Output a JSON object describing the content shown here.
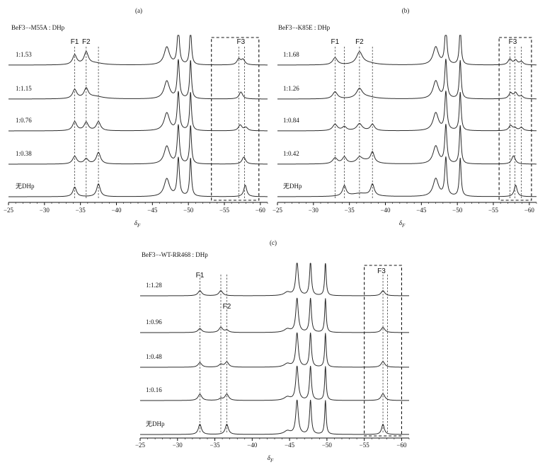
{
  "chart_data": [
    {
      "panel": "(a)",
      "type": "line",
      "title": "BeF3−-M55A : DHp",
      "xlabel": "δF",
      "x_ticks": [
        -25,
        -30,
        -35,
        -40,
        -45,
        -50,
        -55,
        -60
      ],
      "xlim": [
        -25,
        -61
      ],
      "peak_labels": [
        {
          "text": "F1",
          "ppm": -34.2
        },
        {
          "text": "F2",
          "ppm": -35.8
        },
        {
          "text": "F3",
          "ppm": -57.3
        }
      ],
      "dashed_lines_ppm": [
        -34.2,
        -35.8,
        -37.5,
        -57.0,
        -57.8
      ],
      "dashed_box_ppm": [
        -53.2,
        -59.8
      ],
      "series": [
        {
          "name": "1:1.53",
          "peaks": [
            [
              -34.2,
              0.75,
              0.35
            ],
            [
              -35.8,
              0.95,
              0.35
            ],
            [
              -37.0,
              0.15,
              1.4
            ],
            [
              -47.0,
              1.4,
              0.45
            ],
            [
              -48.6,
              3.0,
              0.18
            ],
            [
              -50.3,
              3.0,
              0.15
            ],
            [
              -57.0,
              0.45,
              0.3
            ],
            [
              -57.6,
              0.4,
              0.3
            ]
          ]
        },
        {
          "name": "1:1.15",
          "peaks": [
            [
              -34.2,
              0.7,
              0.35
            ],
            [
              -35.8,
              0.75,
              0.35
            ],
            [
              -37.0,
              0.2,
              1.4
            ],
            [
              -47.0,
              1.4,
              0.45
            ],
            [
              -48.6,
              3.0,
              0.18
            ],
            [
              -50.3,
              3.0,
              0.15
            ],
            [
              -57.3,
              0.55,
              0.3
            ]
          ]
        },
        {
          "name": "1:0.76",
          "peaks": [
            [
              -34.2,
              0.7,
              0.35
            ],
            [
              -35.8,
              0.65,
              0.35
            ],
            [
              -37.5,
              0.7,
              0.35
            ],
            [
              -47.0,
              1.4,
              0.45
            ],
            [
              -48.6,
              3.0,
              0.18
            ],
            [
              -50.3,
              3.0,
              0.15
            ],
            [
              -57.2,
              0.45,
              0.3
            ],
            [
              -58.0,
              0.25,
              0.3
            ]
          ]
        },
        {
          "name": "1:0.38",
          "peaks": [
            [
              -34.2,
              0.6,
              0.35
            ],
            [
              -35.8,
              0.4,
              0.35
            ],
            [
              -37.5,
              0.9,
              0.35
            ],
            [
              -47.0,
              1.4,
              0.45
            ],
            [
              -48.6,
              3.0,
              0.18
            ],
            [
              -50.3,
              3.0,
              0.15
            ],
            [
              -57.7,
              0.55,
              0.3
            ]
          ]
        },
        {
          "name": "无DHp",
          "peaks": [
            [
              -34.2,
              0.75,
              0.3
            ],
            [
              -37.5,
              1.0,
              0.3
            ],
            [
              -47.0,
              1.4,
              0.45
            ],
            [
              -48.6,
              3.0,
              0.18
            ],
            [
              -50.3,
              3.0,
              0.15
            ],
            [
              -57.9,
              0.9,
              0.25
            ]
          ]
        }
      ]
    },
    {
      "panel": "(b)",
      "type": "line",
      "title": "BeF3−-K85E : DHp",
      "xlabel": "δF",
      "x_ticks": [
        -25,
        -30,
        -35,
        -40,
        -45,
        -50,
        -55,
        -60
      ],
      "xlim": [
        -25,
        -61
      ],
      "peak_labels": [
        {
          "text": "F1",
          "ppm": -33.0
        },
        {
          "text": "F2",
          "ppm": -36.4
        },
        {
          "text": "F3",
          "ppm": -57.7
        }
      ],
      "dashed_lines_ppm": [
        -33.0,
        -34.3,
        -36.4,
        -38.2,
        -57.3,
        -58.0,
        -58.9
      ],
      "dashed_box_ppm": [
        -55.8,
        -60.3
      ],
      "series": [
        {
          "name": "1:1.68",
          "peaks": [
            [
              -33.0,
              0.55,
              0.4
            ],
            [
              -36.4,
              0.95,
              0.5
            ],
            [
              -37.5,
              0.15,
              1.4
            ],
            [
              -47.0,
              1.4,
              0.45
            ],
            [
              -48.4,
              3.0,
              0.18
            ],
            [
              -50.4,
              3.0,
              0.15
            ],
            [
              -57.3,
              0.45,
              0.3
            ],
            [
              -58.1,
              0.35,
              0.3
            ],
            [
              -58.9,
              0.25,
              0.3
            ]
          ]
        },
        {
          "name": "1:1.26",
          "peaks": [
            [
              -33.0,
              0.55,
              0.4
            ],
            [
              -36.4,
              0.75,
              0.5
            ],
            [
              -37.5,
              0.15,
              1.4
            ],
            [
              -47.0,
              1.4,
              0.45
            ],
            [
              -48.4,
              3.0,
              0.18
            ],
            [
              -50.4,
              3.0,
              0.15
            ],
            [
              -57.4,
              0.45,
              0.3
            ],
            [
              -58.1,
              0.45,
              0.3
            ],
            [
              -58.9,
              0.2,
              0.3
            ]
          ]
        },
        {
          "name": "1:0.84",
          "peaks": [
            [
              -33.0,
              0.5,
              0.4
            ],
            [
              -34.3,
              0.3,
              0.35
            ],
            [
              -36.4,
              0.55,
              0.45
            ],
            [
              -38.2,
              0.5,
              0.35
            ],
            [
              -47.0,
              1.4,
              0.45
            ],
            [
              -48.4,
              3.0,
              0.18
            ],
            [
              -50.4,
              3.0,
              0.15
            ],
            [
              -57.4,
              0.4,
              0.3
            ],
            [
              -58.0,
              0.2,
              0.3
            ],
            [
              -58.9,
              0.25,
              0.3
            ]
          ]
        },
        {
          "name": "1:0.42",
          "peaks": [
            [
              -33.0,
              0.45,
              0.4
            ],
            [
              -34.3,
              0.5,
              0.35
            ],
            [
              -36.4,
              0.4,
              0.45
            ],
            [
              -37.3,
              0.25,
              1.2
            ],
            [
              -38.2,
              0.8,
              0.3
            ],
            [
              -47.0,
              1.4,
              0.45
            ],
            [
              -48.4,
              3.0,
              0.18
            ],
            [
              -50.4,
              3.0,
              0.15
            ],
            [
              -57.8,
              0.65,
              0.3
            ]
          ]
        },
        {
          "name": "无DHp",
          "peaks": [
            [
              -34.3,
              0.8,
              0.3
            ],
            [
              -36.5,
              0.25,
              1.5
            ],
            [
              -38.2,
              0.9,
              0.3
            ],
            [
              -47.0,
              1.4,
              0.45
            ],
            [
              -48.4,
              3.0,
              0.18
            ],
            [
              -50.4,
              3.0,
              0.15
            ],
            [
              -58.1,
              0.9,
              0.25
            ]
          ]
        }
      ]
    },
    {
      "panel": "(c)",
      "type": "line",
      "title": "BeF3−-WT-RR468 : DHp",
      "xlabel": "δF",
      "x_ticks": [
        -25,
        -30,
        -35,
        -40,
        -45,
        -50,
        -55,
        -60
      ],
      "xlim": [
        -25,
        -61
      ],
      "peak_labels": [
        {
          "text": "F1",
          "ppm": -33.0
        },
        {
          "text": "F2",
          "ppm": -36.6
        },
        {
          "text": "F3",
          "ppm": -57.3
        }
      ],
      "dashed_lines_ppm": [
        -33.0,
        -35.8,
        -36.6,
        -57.5,
        -58.1
      ],
      "dashed_box_ppm": [
        -55.0,
        -60.0
      ],
      "series": [
        {
          "name": "1:1.28",
          "peaks": [
            [
              -33.0,
              0.45,
              0.3
            ],
            [
              -35.8,
              0.45,
              0.3
            ],
            [
              -44.7,
              0.3,
              0.5
            ],
            [
              -46.0,
              3.0,
              0.2
            ],
            [
              -47.8,
              3.0,
              0.15
            ],
            [
              -49.8,
              3.0,
              0.12
            ],
            [
              -57.5,
              0.45,
              0.3
            ]
          ]
        },
        {
          "name": "1:0.96",
          "peaks": [
            [
              -33.0,
              0.35,
              0.3
            ],
            [
              -35.8,
              0.45,
              0.3
            ],
            [
              -36.6,
              0.2,
              0.3
            ],
            [
              -44.7,
              0.3,
              0.5
            ],
            [
              -46.0,
              3.0,
              0.2
            ],
            [
              -47.8,
              3.0,
              0.15
            ],
            [
              -49.8,
              3.0,
              0.12
            ],
            [
              -57.5,
              0.45,
              0.3
            ]
          ]
        },
        {
          "name": "1:0.48",
          "peaks": [
            [
              -33.0,
              0.4,
              0.3
            ],
            [
              -35.8,
              0.25,
              0.3
            ],
            [
              -36.6,
              0.45,
              0.3
            ],
            [
              -44.7,
              0.3,
              0.5
            ],
            [
              -46.0,
              3.0,
              0.2
            ],
            [
              -47.8,
              3.0,
              0.15
            ],
            [
              -49.8,
              3.0,
              0.12
            ],
            [
              -57.5,
              0.5,
              0.3
            ]
          ]
        },
        {
          "name": "1:0.16",
          "peaks": [
            [
              -33.0,
              0.55,
              0.3
            ],
            [
              -35.8,
              0.15,
              0.3
            ],
            [
              -36.6,
              0.55,
              0.3
            ],
            [
              -44.7,
              0.3,
              0.5
            ],
            [
              -46.0,
              3.0,
              0.2
            ],
            [
              -47.8,
              3.0,
              0.15
            ],
            [
              -49.8,
              3.0,
              0.12
            ],
            [
              -57.5,
              0.6,
              0.3
            ]
          ]
        },
        {
          "name": "无DHp",
          "peaks": [
            [
              -33.0,
              0.9,
              0.25
            ],
            [
              -36.6,
              0.9,
              0.25
            ],
            [
              -44.7,
              0.3,
              0.5
            ],
            [
              -46.0,
              3.0,
              0.2
            ],
            [
              -47.8,
              3.0,
              0.15
            ],
            [
              -49.8,
              3.0,
              0.12
            ],
            [
              -57.5,
              0.9,
              0.22
            ]
          ]
        }
      ]
    }
  ]
}
